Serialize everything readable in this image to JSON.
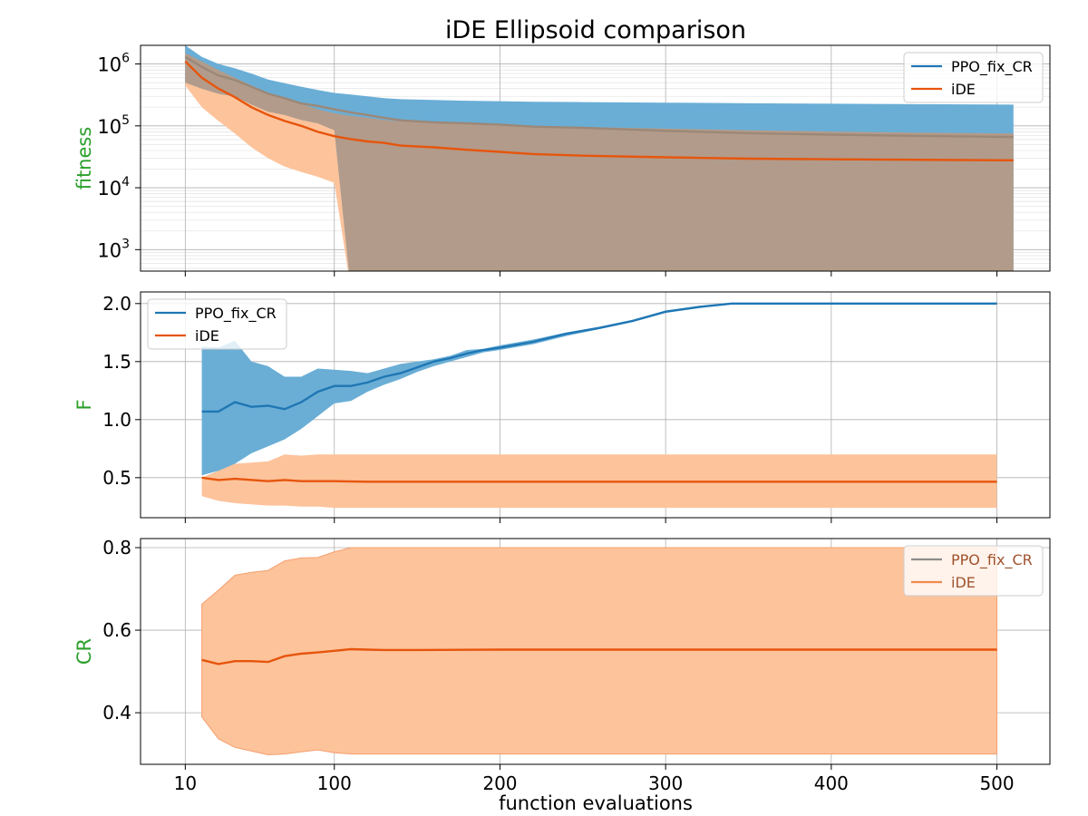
{
  "figure": {
    "title": "iDE Ellipsoid comparison",
    "xlabel": "function evaluations"
  },
  "colors": {
    "ppo_line": "#1f77b4",
    "ppo_band": "#6aaed6",
    "ide_line": "#e6550d",
    "ide_band": "#fdc39b",
    "overlap": "#b29b8a",
    "mean_gray": "#9c8877",
    "ylabel": "#2ca02c",
    "grid": "#b0b0b0"
  },
  "chart_data": [
    {
      "id": "fitness",
      "type": "area",
      "ylabel": "fitness",
      "yscale": "log",
      "ylim": [
        450,
        2000000
      ],
      "xlim": [
        -17,
        532
      ],
      "xticks": [
        10,
        100,
        200,
        300,
        400,
        500
      ],
      "yticks": [
        {
          "value": 1000,
          "base": "10",
          "exp": "3"
        },
        {
          "value": 10000,
          "base": "10",
          "exp": "4"
        },
        {
          "value": 100000,
          "base": "10",
          "exp": "5"
        },
        {
          "value": 1000000,
          "base": "10",
          "exp": "6"
        }
      ],
      "legend": {
        "position": "upper-right",
        "entries": [
          "PPO_fix_CR",
          "iDE"
        ]
      },
      "x": [
        10,
        20,
        30,
        40,
        50,
        60,
        70,
        80,
        90,
        100,
        110,
        120,
        130,
        140,
        160,
        180,
        200,
        220,
        250,
        300,
        350,
        400,
        450,
        510
      ],
      "series": [
        {
          "name": "PPO_fix_CR",
          "mean": [
            1300000,
            900000,
            650000,
            550000,
            430000,
            330000,
            280000,
            230000,
            210000,
            185000,
            165000,
            150000,
            135000,
            123000,
            114000,
            110000,
            105000,
            97000,
            93000,
            83000,
            76000,
            72000,
            69000,
            66000
          ],
          "upper": [
            2000000,
            1300000,
            1000000,
            850000,
            700000,
            560000,
            490000,
            430000,
            380000,
            340000,
            320000,
            300000,
            280000,
            270000,
            262000,
            255000,
            250000,
            245000,
            242000,
            237000,
            232000,
            228000,
            224000,
            220000
          ],
          "lower": [
            500000,
            400000,
            330000,
            300000,
            220000,
            170000,
            150000,
            125000,
            110000,
            85000,
            null,
            null,
            null,
            null,
            null,
            null,
            null,
            null,
            null,
            null,
            null,
            null,
            null,
            null
          ]
        },
        {
          "name": "iDE",
          "mean": [
            1100000,
            600000,
            400000,
            290000,
            200000,
            150000,
            120000,
            100000,
            80000,
            68000,
            61000,
            56000,
            53000,
            48000,
            45000,
            41000,
            38000,
            35000,
            33000,
            31000,
            29500,
            28800,
            28300,
            27800
          ],
          "upper": [
            1500000,
            1100000,
            800000,
            600000,
            450000,
            340000,
            270000,
            225000,
            185000,
            160000,
            145000,
            135000,
            125000,
            118000,
            112000,
            108000,
            104000,
            100000,
            96000,
            90000,
            85000,
            81000,
            78000,
            75000
          ],
          "lower": [
            450000,
            200000,
            120000,
            75000,
            45000,
            30000,
            22000,
            18000,
            15000,
            12000,
            null,
            null,
            null,
            null,
            null,
            null,
            null,
            null,
            null,
            null,
            null,
            null,
            null,
            null
          ]
        }
      ]
    },
    {
      "id": "F",
      "type": "area",
      "ylabel": "F",
      "yscale": "linear",
      "ylim": [
        0.155,
        2.1
      ],
      "xlim": [
        -17,
        532
      ],
      "xticks": [
        10,
        100,
        200,
        300,
        400,
        500
      ],
      "yticks": [
        0.5,
        1.0,
        1.5,
        2.0
      ],
      "ytick_labels": [
        "0.5",
        "1.0",
        "1.5",
        "2.0"
      ],
      "legend": {
        "position": "upper-left",
        "entries": [
          "PPO_fix_CR",
          "iDE"
        ]
      },
      "series": [
        {
          "name": "PPO_fix_CR",
          "x": [
            20,
            30,
            40,
            50,
            60,
            70,
            80,
            90,
            100,
            110,
            120,
            130,
            140,
            150,
            160,
            170,
            180,
            190,
            200,
            220,
            240,
            260,
            280,
            300,
            320,
            340,
            400,
            450,
            500
          ],
          "mean": [
            1.07,
            1.07,
            1.15,
            1.11,
            1.12,
            1.09,
            1.15,
            1.24,
            1.29,
            1.29,
            1.32,
            1.37,
            1.4,
            1.45,
            1.5,
            1.53,
            1.57,
            1.6,
            1.62,
            1.67,
            1.74,
            1.79,
            1.85,
            1.93,
            1.97,
            2.0,
            2.0,
            2.0,
            2.0
          ],
          "upper": [
            1.63,
            1.62,
            1.68,
            1.5,
            1.46,
            1.37,
            1.37,
            1.44,
            1.43,
            1.42,
            1.4,
            1.44,
            1.48,
            1.5,
            1.52,
            1.55,
            1.6,
            1.61,
            1.64,
            1.69,
            1.75,
            1.8,
            1.86,
            1.94,
            1.98,
            2.0,
            2.0,
            2.0,
            2.0
          ],
          "lower": [
            0.52,
            0.56,
            0.62,
            0.71,
            0.77,
            0.83,
            0.92,
            1.03,
            1.14,
            1.16,
            1.24,
            1.3,
            1.35,
            1.41,
            1.46,
            1.5,
            1.54,
            1.58,
            1.6,
            1.65,
            1.72,
            1.78,
            1.84,
            1.92,
            1.96,
            2.0,
            2.0,
            2.0,
            2.0
          ]
        },
        {
          "name": "iDE",
          "x": [
            20,
            30,
            40,
            60,
            70,
            80,
            90,
            100,
            120,
            150,
            200,
            250,
            300,
            350,
            400,
            450,
            500
          ],
          "mean": [
            0.5,
            0.48,
            0.49,
            0.47,
            0.48,
            0.47,
            0.47,
            0.47,
            0.465,
            0.465,
            0.465,
            0.465,
            0.465,
            0.465,
            0.465,
            0.465,
            0.465
          ],
          "upper": [
            0.5,
            0.56,
            0.62,
            0.64,
            0.7,
            0.69,
            0.7,
            0.7,
            0.7,
            0.7,
            0.7,
            0.7,
            0.7,
            0.7,
            0.7,
            0.7,
            0.7
          ],
          "lower": [
            0.34,
            0.3,
            0.28,
            0.26,
            0.26,
            0.25,
            0.25,
            0.24,
            0.24,
            0.24,
            0.24,
            0.24,
            0.24,
            0.24,
            0.24,
            0.24,
            0.24
          ]
        }
      ]
    },
    {
      "id": "CR",
      "type": "area",
      "ylabel": "CR",
      "yscale": "linear",
      "ylim": [
        0.275,
        0.822
      ],
      "xlim": [
        -17,
        532
      ],
      "xticks": [
        10,
        100,
        200,
        300,
        400,
        500
      ],
      "xtick_labels": [
        "10",
        "100",
        "200",
        "300",
        "400",
        "500"
      ],
      "yticks": [
        0.4,
        0.6,
        0.8
      ],
      "ytick_labels": [
        "0.4",
        "0.6",
        "0.8"
      ],
      "legend": {
        "position": "upper-right",
        "entries": [
          "PPO_fix_CR",
          "iDE"
        ]
      },
      "series": [
        {
          "name": "iDE",
          "x": [
            20,
            30,
            40,
            50,
            60,
            70,
            80,
            90,
            100,
            110,
            120,
            130,
            150,
            200,
            250,
            300,
            400,
            500
          ],
          "mean": [
            0.528,
            0.518,
            0.525,
            0.525,
            0.523,
            0.537,
            0.543,
            0.546,
            0.55,
            0.554,
            0.553,
            0.552,
            0.552,
            0.553,
            0.553,
            0.553,
            0.553,
            0.553
          ],
          "upper": [
            0.663,
            0.697,
            0.733,
            0.74,
            0.745,
            0.768,
            0.775,
            0.776,
            0.79,
            0.8,
            0.8,
            0.8,
            0.8,
            0.8,
            0.8,
            0.8,
            0.8,
            0.8
          ],
          "lower": [
            0.39,
            0.337,
            0.316,
            0.307,
            0.298,
            0.3,
            0.305,
            0.31,
            0.303,
            0.3,
            0.3,
            0.3,
            0.3,
            0.3,
            0.3,
            0.3,
            0.3,
            0.3
          ]
        }
      ]
    }
  ]
}
